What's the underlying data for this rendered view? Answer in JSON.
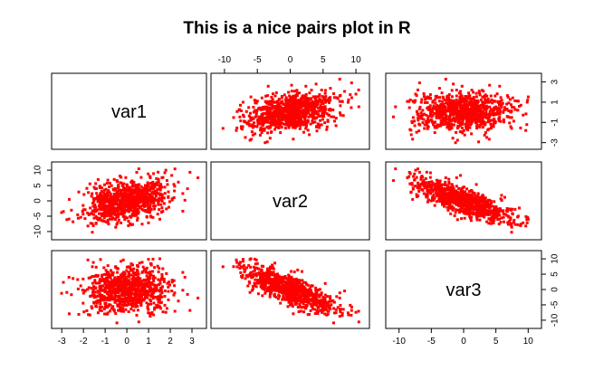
{
  "chart_data": {
    "type": "scatter-matrix",
    "title": "This is a nice pairs plot in R",
    "variables": [
      "var1",
      "var2",
      "var3"
    ],
    "point_color": "#ff0000",
    "point_count_per_panel": 900,
    "ranges": {
      "var1": [
        -3.3,
        3.5
      ],
      "var2": [
        -11.5,
        11.5
      ],
      "var3": [
        -11.5,
        11.5
      ]
    },
    "var1_secondary_scale": {
      "range": [
        -3.3,
        3.5
      ],
      "ticks": [
        "-3",
        "-1",
        "1",
        "3"
      ]
    },
    "ticks": {
      "var1": [
        "-3",
        "-2",
        "-1",
        "0",
        "1",
        "2",
        "3"
      ],
      "var2": [
        "-10",
        "-5",
        "0",
        "5",
        "10"
      ],
      "var3": [
        "-10",
        "-5",
        "0",
        "5",
        "10"
      ]
    },
    "distributions": {
      "var1": {
        "mean": 0,
        "sd": 1
      },
      "var2": {
        "mean": 0,
        "sd": 3.5
      },
      "var3": {
        "mean": 0,
        "sd": 3.5
      }
    },
    "correlations": {
      "var1_var2": 0.45,
      "var1_var3": 0.0,
      "var2_var3": -0.75
    },
    "grid": false,
    "legend": "none"
  }
}
